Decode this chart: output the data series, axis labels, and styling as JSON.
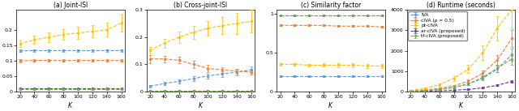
{
  "K": [
    20,
    40,
    60,
    80,
    100,
    120,
    140,
    160
  ],
  "colors": {
    "IVA": "#5b9bd5",
    "cIVA": "#ed7d31",
    "pt_cIVA": "#ffc000",
    "ar_cIVA": "#7030a0",
    "tf_cIVA": "#70ad47"
  },
  "joint_ISI": {
    "IVA": [
      0.132,
      0.133,
      0.133,
      0.133,
      0.133,
      0.133,
      0.133,
      0.133
    ],
    "cIVA": [
      0.1,
      0.101,
      0.101,
      0.101,
      0.101,
      0.101,
      0.101,
      0.101
    ],
    "pt_cIVA": [
      0.155,
      0.168,
      0.176,
      0.185,
      0.19,
      0.195,
      0.2,
      0.222
    ],
    "ar_cIVA": [
      0.01,
      0.01,
      0.01,
      0.01,
      0.01,
      0.01,
      0.01,
      0.01
    ],
    "tf_cIVA": [
      0.008,
      0.008,
      0.008,
      0.008,
      0.008,
      0.008,
      0.008,
      0.008
    ]
  },
  "joint_ISI_err": {
    "IVA": [
      0.004,
      0.004,
      0.004,
      0.004,
      0.004,
      0.004,
      0.004,
      0.004
    ],
    "cIVA": [
      0.004,
      0.004,
      0.004,
      0.004,
      0.004,
      0.004,
      0.004,
      0.004
    ],
    "pt_cIVA": [
      0.01,
      0.013,
      0.015,
      0.018,
      0.02,
      0.02,
      0.022,
      0.028
    ],
    "ar_cIVA": [
      0.002,
      0.002,
      0.002,
      0.002,
      0.002,
      0.002,
      0.002,
      0.002
    ],
    "tf_cIVA": [
      0.002,
      0.002,
      0.002,
      0.002,
      0.002,
      0.002,
      0.002,
      0.002
    ]
  },
  "cross_ISI": {
    "IVA": [
      0.02,
      0.03,
      0.038,
      0.048,
      0.058,
      0.065,
      0.072,
      0.08
    ],
    "cIVA": [
      0.12,
      0.12,
      0.115,
      0.1,
      0.085,
      0.08,
      0.075,
      0.072
    ],
    "pt_cIVA": [
      0.152,
      0.178,
      0.2,
      0.218,
      0.232,
      0.242,
      0.25,
      0.258
    ],
    "ar_cIVA": [
      0.003,
      0.003,
      0.003,
      0.003,
      0.003,
      0.003,
      0.003,
      0.003
    ],
    "tf_cIVA": [
      0.003,
      0.003,
      0.003,
      0.003,
      0.003,
      0.003,
      0.003,
      0.003
    ]
  },
  "cross_ISI_err": {
    "IVA": [
      0.005,
      0.006,
      0.007,
      0.008,
      0.009,
      0.01,
      0.011,
      0.012
    ],
    "cIVA": [
      0.015,
      0.012,
      0.012,
      0.012,
      0.012,
      0.01,
      0.01,
      0.01
    ],
    "pt_cIVA": [
      0.012,
      0.016,
      0.02,
      0.024,
      0.028,
      0.032,
      0.038,
      0.042
    ],
    "ar_cIVA": [
      0.001,
      0.001,
      0.001,
      0.001,
      0.001,
      0.001,
      0.001,
      0.001
    ],
    "tf_cIVA": [
      0.001,
      0.001,
      0.001,
      0.001,
      0.001,
      0.001,
      0.001,
      0.001
    ]
  },
  "sim_factor": {
    "IVA": [
      0.2,
      0.2,
      0.2,
      0.2,
      0.2,
      0.2,
      0.2,
      0.2
    ],
    "cIVA": [
      0.85,
      0.85,
      0.85,
      0.85,
      0.84,
      0.84,
      0.84,
      0.83
    ],
    "pt_cIVA": [
      0.35,
      0.35,
      0.34,
      0.34,
      0.34,
      0.34,
      0.33,
      0.33
    ],
    "ar_cIVA": [
      0.98,
      0.98,
      0.98,
      0.98,
      0.98,
      0.98,
      0.98,
      0.98
    ],
    "tf_cIVA": [
      0.98,
      0.98,
      0.98,
      0.98,
      0.98,
      0.98,
      0.98,
      0.98
    ]
  },
  "sim_factor_err": {
    "IVA": [
      0.012,
      0.012,
      0.012,
      0.012,
      0.012,
      0.012,
      0.012,
      0.012
    ],
    "cIVA": [
      0.01,
      0.01,
      0.01,
      0.01,
      0.01,
      0.01,
      0.01,
      0.01
    ],
    "pt_cIVA": [
      0.018,
      0.018,
      0.018,
      0.02,
      0.022,
      0.022,
      0.024,
      0.024
    ],
    "ar_cIVA": [
      0.003,
      0.003,
      0.003,
      0.003,
      0.003,
      0.003,
      0.003,
      0.003
    ],
    "tf_cIVA": [
      0.003,
      0.003,
      0.003,
      0.003,
      0.003,
      0.003,
      0.003,
      0.003
    ]
  },
  "runtime": {
    "IVA": [
      30,
      65,
      120,
      210,
      370,
      650,
      1100,
      1800
    ],
    "cIVA": [
      40,
      85,
      160,
      290,
      510,
      900,
      1550,
      2600
    ],
    "pt_cIVA": [
      60,
      160,
      340,
      650,
      1100,
      1900,
      3100,
      4000
    ],
    "ar_cIVA": [
      10,
      20,
      40,
      70,
      110,
      190,
      310,
      500
    ],
    "tf_cIVA": [
      18,
      45,
      100,
      200,
      380,
      700,
      1150,
      1600
    ]
  },
  "runtime_err": {
    "IVA": [
      5,
      10,
      18,
      32,
      55,
      95,
      160,
      300
    ],
    "cIVA": [
      6,
      12,
      22,
      42,
      75,
      130,
      230,
      400
    ],
    "pt_cIVA": [
      10,
      25,
      55,
      110,
      200,
      360,
      600,
      900
    ],
    "ar_cIVA": [
      2,
      3,
      5,
      9,
      15,
      25,
      42,
      75
    ],
    "tf_cIVA": [
      3,
      7,
      15,
      30,
      58,
      110,
      180,
      280
    ]
  },
  "legend_labels": [
    "IVA",
    "cIVA (ρ = 0.5)",
    "pt-cIVA",
    "ar-cIVA (proposed)",
    "tf-cIVA (proposed)"
  ],
  "subplot_titles": [
    "(a) Joint-ISI",
    "(b) Cross-joint-ISI",
    "(c) Similarity factor",
    "(d) Runtime (seconds)"
  ],
  "ylims": {
    "joint_ISI": [
      0,
      0.265
    ],
    "cross_ISI": [
      0,
      0.3
    ],
    "sim_factor": [
      0,
      1.05
    ],
    "runtime": [
      0,
      4000
    ]
  },
  "yticks": {
    "joint_ISI": [
      0,
      0.05,
      0.1,
      0.15,
      0.2
    ],
    "cross_ISI": [
      0,
      0.1,
      0.2,
      0.3
    ],
    "sim_factor": [
      0,
      0.5,
      1.0
    ],
    "runtime": [
      0,
      1000,
      2000,
      3000,
      4000
    ]
  }
}
